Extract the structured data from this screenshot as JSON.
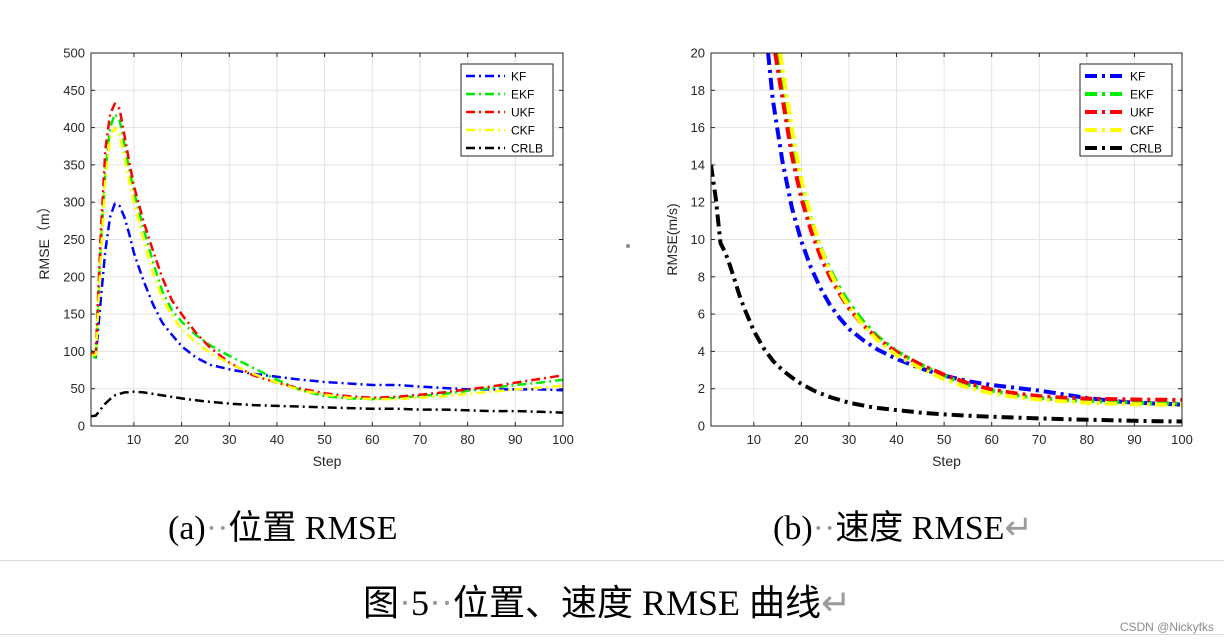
{
  "chart_data": [
    {
      "type": "line",
      "title": "",
      "xlabel": "Step",
      "ylabel": "RMSE（m）",
      "xlim": [
        1,
        100
      ],
      "ylim": [
        0,
        500
      ],
      "xticks": [
        10,
        20,
        30,
        40,
        50,
        60,
        70,
        80,
        90,
        100
      ],
      "yticks": [
        0,
        50,
        100,
        150,
        200,
        250,
        300,
        350,
        400,
        450,
        500
      ],
      "grid": true,
      "legend": "top-right",
      "series": [
        {
          "name": "KF",
          "color": "#0000ff",
          "style": "dashdot",
          "x": [
            1,
            2,
            3,
            4,
            5,
            6,
            7,
            8,
            9,
            10,
            12,
            14,
            16,
            18,
            20,
            23,
            26,
            30,
            35,
            40,
            45,
            50,
            55,
            60,
            65,
            70,
            75,
            80,
            85,
            90,
            95,
            100
          ],
          "y": [
            98,
            93,
            165,
            235,
            280,
            298,
            295,
            280,
            258,
            232,
            195,
            163,
            138,
            122,
            107,
            92,
            82,
            76,
            70,
            66,
            62,
            59,
            57,
            55,
            55,
            53,
            51,
            49,
            49,
            49,
            49,
            48
          ]
        },
        {
          "name": "EKF",
          "color": "#00ee00",
          "style": "dashdot",
          "x": [
            1,
            2,
            3,
            4,
            5,
            6,
            7,
            8,
            9,
            10,
            12,
            14,
            16,
            18,
            20,
            23,
            26,
            30,
            35,
            40,
            45,
            50,
            55,
            60,
            65,
            70,
            75,
            80,
            85,
            90,
            95,
            100
          ],
          "y": [
            102,
            88,
            230,
            340,
            400,
            418,
            410,
            378,
            345,
            315,
            265,
            220,
            180,
            155,
            140,
            122,
            108,
            94,
            78,
            62,
            48,
            40,
            37,
            36,
            38,
            40,
            43,
            47,
            51,
            55,
            58,
            62
          ]
        },
        {
          "name": "UKF",
          "color": "#ff0000",
          "style": "dashdot",
          "x": [
            1,
            2,
            3,
            4,
            5,
            6,
            7,
            8,
            9,
            10,
            12,
            14,
            16,
            18,
            20,
            23,
            26,
            30,
            35,
            40,
            45,
            50,
            55,
            60,
            65,
            70,
            75,
            80,
            85,
            90,
            95,
            100
          ],
          "y": [
            96,
            100,
            250,
            370,
            418,
            432,
            425,
            390,
            355,
            322,
            275,
            235,
            198,
            168,
            150,
            125,
            105,
            85,
            68,
            58,
            50,
            44,
            40,
            38,
            39,
            42,
            45,
            49,
            53,
            58,
            63,
            68
          ]
        },
        {
          "name": "CKF",
          "color": "#ffff00",
          "style": "dashdot",
          "x": [
            1,
            2,
            3,
            4,
            5,
            6,
            7,
            8,
            9,
            10,
            12,
            14,
            16,
            18,
            20,
            23,
            26,
            30,
            35,
            40,
            45,
            50,
            55,
            60,
            65,
            70,
            75,
            80,
            85,
            90,
            95,
            100
          ],
          "y": [
            95,
            95,
            220,
            330,
            385,
            400,
            390,
            360,
            330,
            300,
            250,
            205,
            170,
            148,
            130,
            112,
            98,
            84,
            70,
            58,
            48,
            42,
            38,
            36,
            36,
            38,
            40,
            43,
            46,
            49,
            51,
            54
          ]
        },
        {
          "name": "CRLB",
          "color": "#000000",
          "style": "dashdot",
          "x": [
            1,
            2,
            3,
            4,
            5,
            6,
            7,
            8,
            9,
            10,
            12,
            14,
            16,
            18,
            20,
            25,
            30,
            35,
            40,
            45,
            50,
            55,
            60,
            65,
            70,
            75,
            80,
            85,
            90,
            95,
            100
          ],
          "y": [
            13,
            14,
            22,
            30,
            36,
            41,
            43,
            45,
            45,
            46,
            45,
            43,
            41,
            39,
            37,
            33,
            30,
            28,
            27,
            26,
            25,
            24,
            23,
            23,
            22,
            22,
            21,
            20,
            20,
            19,
            18
          ]
        }
      ]
    },
    {
      "type": "line",
      "title": "",
      "xlabel": "Step",
      "ylabel": "RMSE(m/s)",
      "xlim": [
        1,
        100
      ],
      "ylim": [
        0,
        20
      ],
      "xticks": [
        10,
        20,
        30,
        40,
        50,
        60,
        70,
        80,
        90,
        100
      ],
      "yticks": [
        0,
        2,
        4,
        6,
        8,
        10,
        12,
        14,
        16,
        18,
        20
      ],
      "grid": true,
      "legend": "top-right",
      "series": [
        {
          "name": "KF",
          "color": "#0000ff",
          "style": "dashdot",
          "x": [
            13,
            14,
            16,
            18,
            20,
            22,
            24,
            26,
            28,
            30,
            33,
            36,
            40,
            45,
            50,
            55,
            60,
            65,
            70,
            75,
            80,
            85,
            90,
            95,
            100
          ],
          "y": [
            20,
            17.5,
            14.2,
            11.7,
            9.9,
            8.5,
            7.4,
            6.5,
            5.8,
            5.2,
            4.6,
            4.1,
            3.6,
            3.1,
            2.7,
            2.4,
            2.2,
            2.05,
            1.9,
            1.7,
            1.5,
            1.35,
            1.25,
            1.2,
            1.15
          ]
        },
        {
          "name": "EKF",
          "color": "#00ee00",
          "style": "dashdot",
          "x": [
            15,
            16,
            18,
            20,
            22,
            24,
            26,
            28,
            30,
            33,
            36,
            40,
            45,
            50,
            55,
            60,
            65,
            70,
            75,
            80,
            85,
            90,
            95,
            100
          ],
          "y": [
            20,
            18.4,
            15.2,
            12.8,
            11.0,
            9.6,
            8.4,
            7.4,
            6.6,
            5.6,
            4.8,
            4.0,
            3.3,
            2.7,
            2.2,
            1.9,
            1.65,
            1.5,
            1.4,
            1.35,
            1.3,
            1.25,
            1.22,
            1.2
          ]
        },
        {
          "name": "UKF",
          "color": "#ff0000",
          "style": "dashdot",
          "x": [
            14.5,
            16,
            18,
            20,
            22,
            24,
            26,
            28,
            30,
            33,
            36,
            40,
            45,
            50,
            55,
            60,
            65,
            70,
            75,
            80,
            85,
            90,
            95,
            100
          ],
          "y": [
            20,
            17.6,
            14.5,
            12.2,
            10.5,
            9.1,
            8.0,
            7.1,
            6.3,
            5.4,
            4.7,
            3.95,
            3.3,
            2.75,
            2.3,
            1.95,
            1.75,
            1.6,
            1.52,
            1.47,
            1.44,
            1.42,
            1.41,
            1.4
          ]
        },
        {
          "name": "CKF",
          "color": "#ffff00",
          "style": "dashdot",
          "x": [
            15.5,
            16,
            18,
            20,
            22,
            24,
            26,
            28,
            30,
            33,
            36,
            40,
            45,
            50,
            55,
            60,
            65,
            70,
            75,
            80,
            85,
            90,
            95,
            100
          ],
          "y": [
            20,
            19.2,
            15.9,
            13.2,
            11.2,
            9.6,
            8.3,
            7.2,
            6.4,
            5.4,
            4.6,
            3.8,
            3.1,
            2.5,
            2.05,
            1.75,
            1.55,
            1.42,
            1.32,
            1.25,
            1.2,
            1.17,
            1.15,
            1.13
          ]
        },
        {
          "name": "CRLB",
          "color": "#000000",
          "style": "dashdot",
          "x": [
            1,
            2,
            3,
            4,
            5,
            6,
            7,
            8,
            9,
            10,
            12,
            14,
            16,
            18,
            20,
            23,
            26,
            30,
            35,
            40,
            45,
            50,
            55,
            60,
            65,
            70,
            75,
            80,
            85,
            90,
            95,
            100
          ],
          "y": [
            14,
            12.2,
            9.8,
            9.3,
            8.6,
            7.8,
            7.0,
            6.3,
            5.7,
            5.1,
            4.2,
            3.5,
            3.0,
            2.6,
            2.25,
            1.85,
            1.55,
            1.25,
            1.0,
            0.85,
            0.72,
            0.62,
            0.55,
            0.5,
            0.45,
            0.41,
            0.37,
            0.34,
            0.31,
            0.28,
            0.26,
            0.24
          ]
        }
      ]
    }
  ],
  "captions": {
    "a_prefix": "(a)",
    "a_mark": "··",
    "a_text": "位置 RMSE",
    "b_prefix": "(b)",
    "b_mark": "··",
    "b_text": "速度 RMSE",
    "b_return": "↵",
    "figure_prefix": "图",
    "figure_mark1": "·",
    "figure_num": "5",
    "figure_mark2": "··",
    "figure_text": "位置、速度 RMSE 曲线",
    "figure_return": "↵"
  },
  "watermark": "CSDN @Nickyfks"
}
